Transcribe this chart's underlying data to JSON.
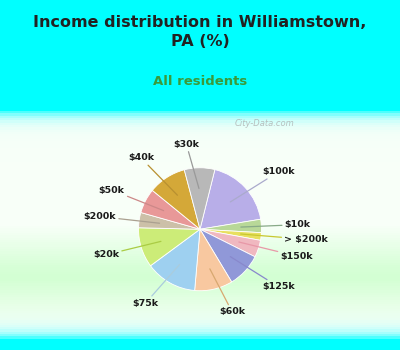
{
  "title": "Income distribution in Williamstown,\nPA (%)",
  "subtitle": "All residents",
  "labels": [
    "$100k",
    "$10k",
    "> $200k",
    "$150k",
    "$125k",
    "$60k",
    "$75k",
    "$20k",
    "$200k",
    "$50k",
    "$40k",
    "$30k"
  ],
  "sizes": [
    18.5,
    3.5,
    2.0,
    4.5,
    9.0,
    10.0,
    13.5,
    10.5,
    4.0,
    6.5,
    10.0,
    8.0
  ],
  "colors": [
    "#b8aee8",
    "#b8d898",
    "#e8e060",
    "#f0b8c0",
    "#9098d8",
    "#f8c8a0",
    "#9ed0f0",
    "#ccec78",
    "#ccc0a8",
    "#e89898",
    "#d4a838",
    "#b8b8b8"
  ],
  "background_top": "#00ffff",
  "background_chart_grad_left": "#d0efe0",
  "background_chart_grad_right": "#f8fff8",
  "title_color": "#222222",
  "subtitle_color": "#3a9a3a",
  "watermark": "City-Data.com",
  "startangle": 76,
  "label_line_colors": [
    "#aaaacc",
    "#88aa88",
    "#c8c830",
    "#e898a8",
    "#8888cc",
    "#d8a870",
    "#aaccdd",
    "#aacc44",
    "#aaa090",
    "#cc8888",
    "#b89030",
    "#999999"
  ]
}
